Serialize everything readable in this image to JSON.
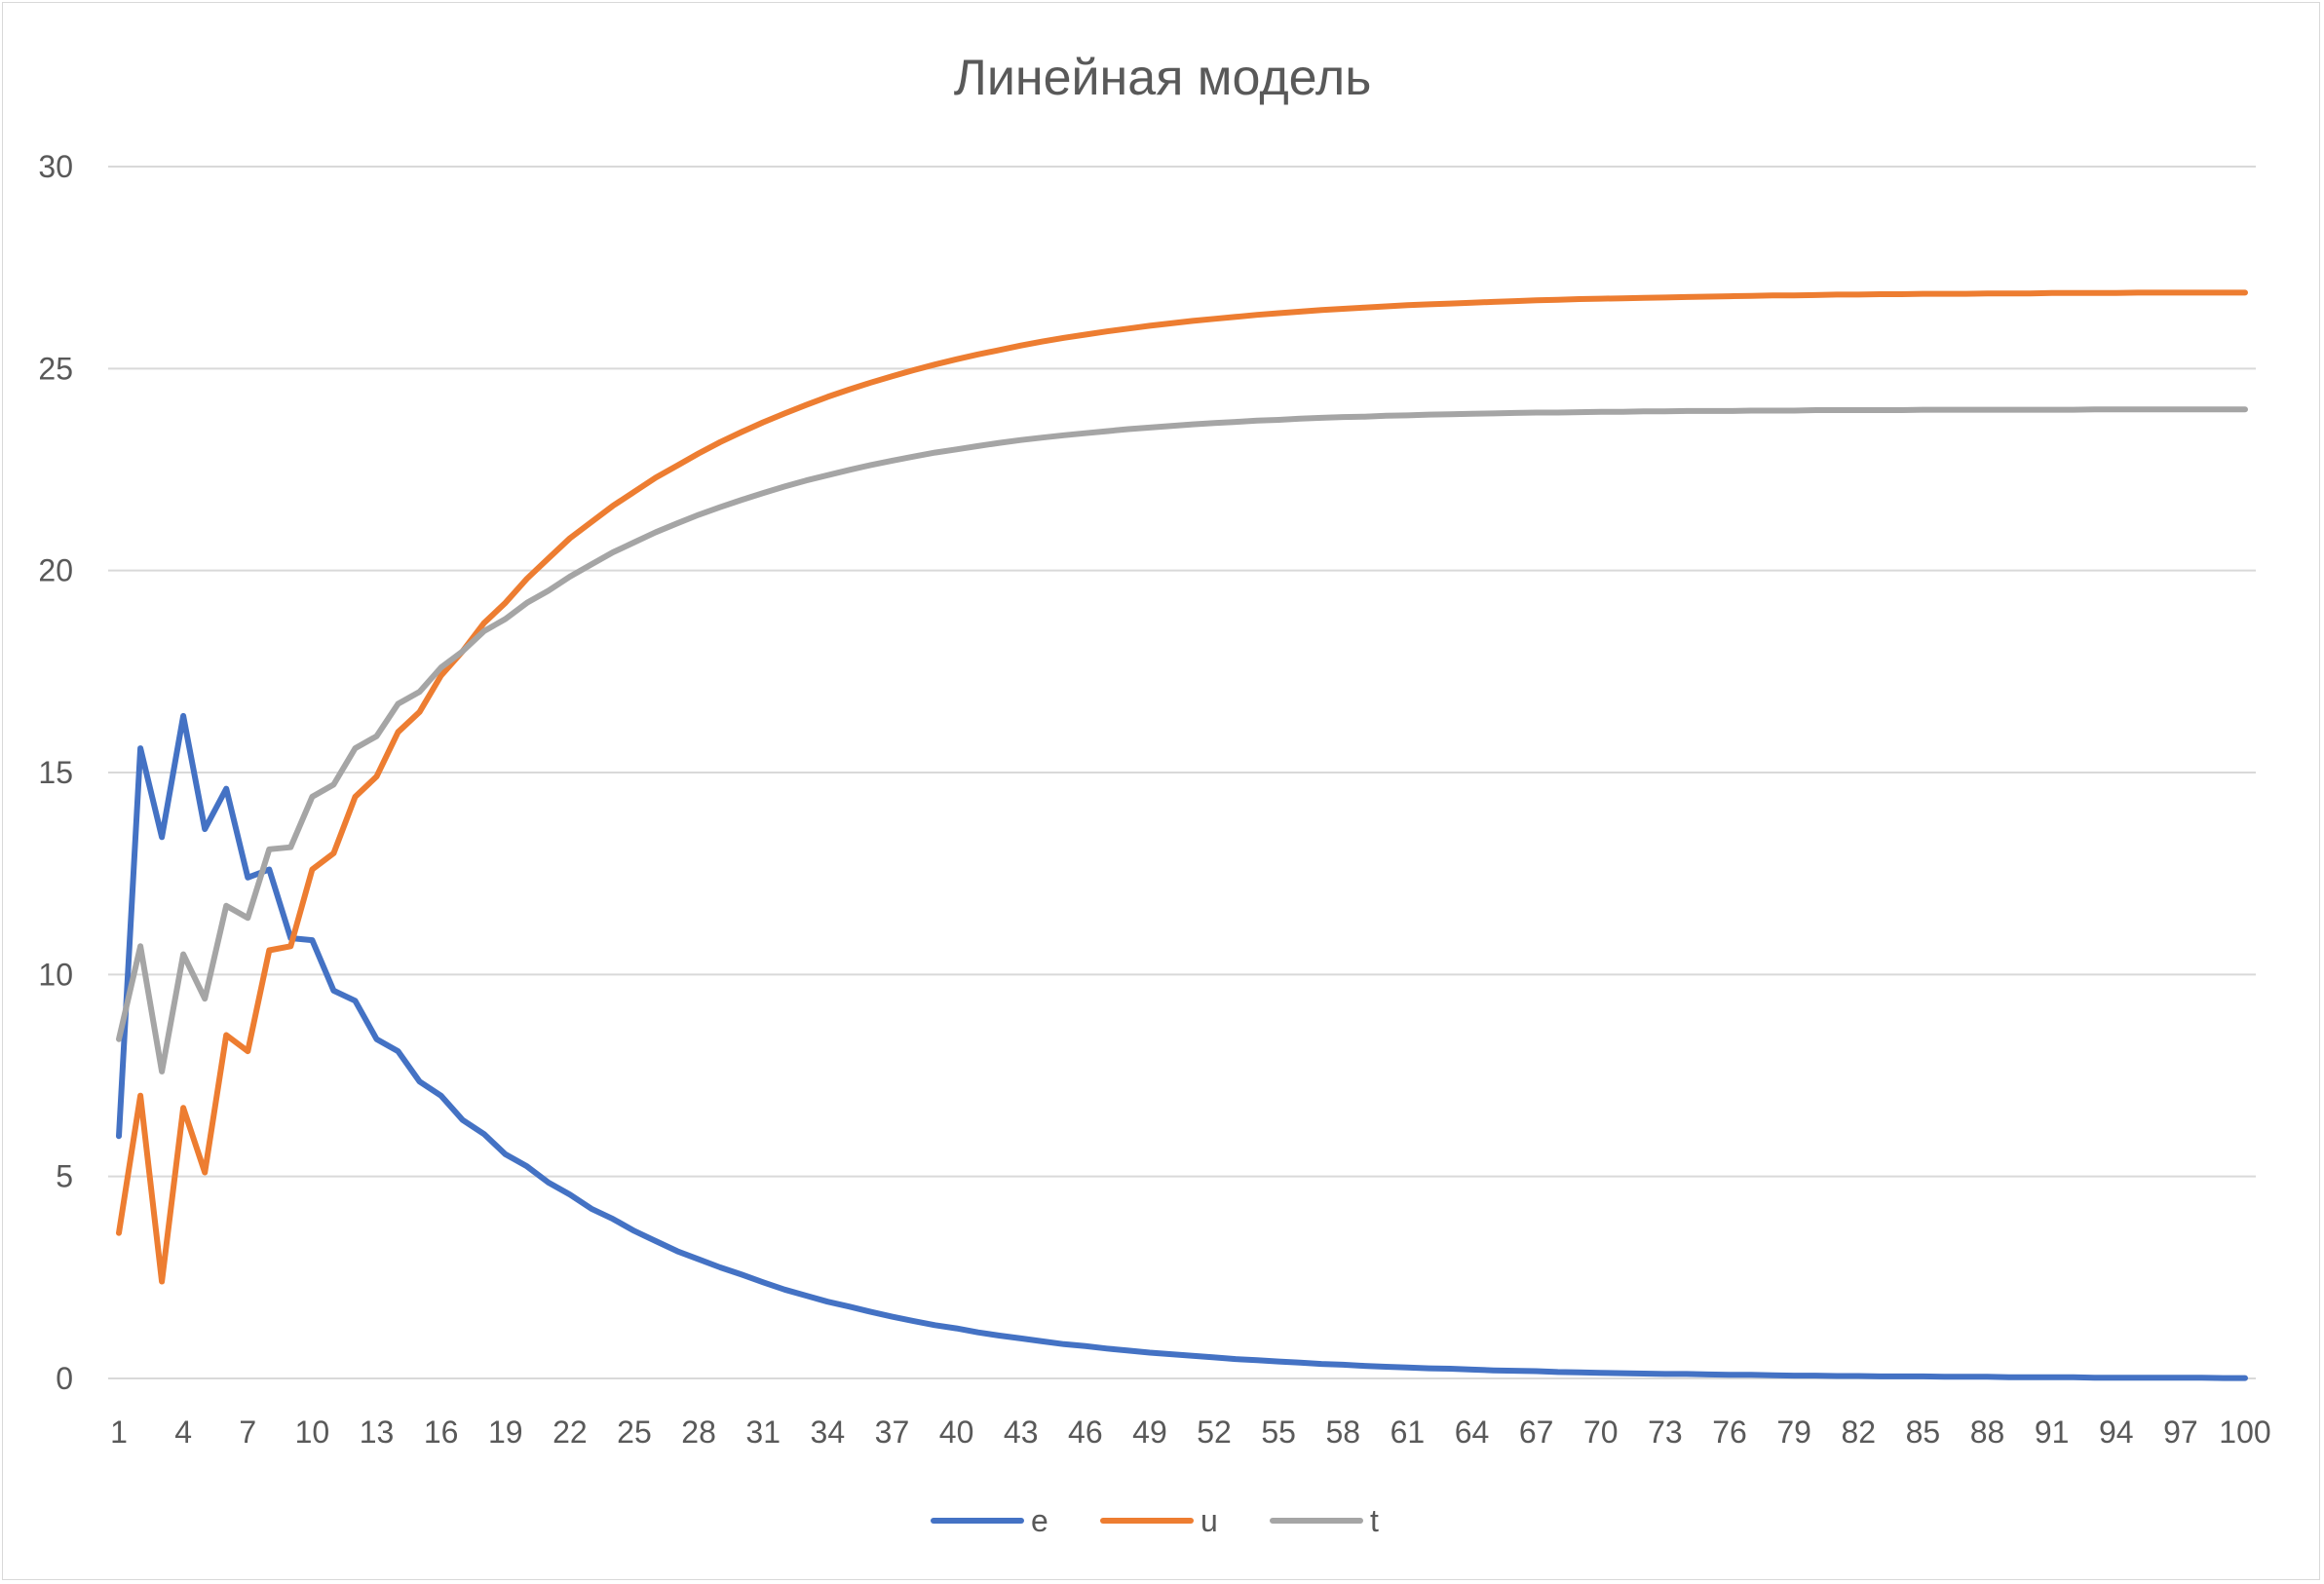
{
  "chart_data": {
    "type": "line",
    "title": "Линейная модель",
    "xlabel": "",
    "ylabel": "",
    "ylim": [
      0,
      30
    ],
    "yticks": [
      0,
      5,
      10,
      15,
      20,
      25,
      30
    ],
    "x": [
      1,
      2,
      3,
      4,
      5,
      6,
      7,
      8,
      9,
      10,
      11,
      12,
      13,
      14,
      15,
      16,
      17,
      18,
      19,
      20,
      21,
      22,
      23,
      24,
      25,
      26,
      27,
      28,
      29,
      30,
      31,
      32,
      33,
      34,
      35,
      36,
      37,
      38,
      39,
      40,
      41,
      42,
      43,
      44,
      45,
      46,
      47,
      48,
      49,
      50,
      51,
      52,
      53,
      54,
      55,
      56,
      57,
      58,
      59,
      60,
      61,
      62,
      63,
      64,
      65,
      66,
      67,
      68,
      69,
      70,
      71,
      72,
      73,
      74,
      75,
      76,
      77,
      78,
      79,
      80,
      81,
      82,
      83,
      84,
      85,
      86,
      87,
      88,
      89,
      90,
      91,
      92,
      93,
      94,
      95,
      96,
      97,
      98,
      99,
      100
    ],
    "xticks": [
      1,
      4,
      7,
      10,
      13,
      16,
      19,
      22,
      25,
      28,
      31,
      34,
      37,
      40,
      43,
      46,
      49,
      52,
      55,
      58,
      61,
      64,
      67,
      70,
      73,
      76,
      79,
      82,
      85,
      88,
      91,
      94,
      97,
      100
    ],
    "grid": true,
    "legend_position": "bottom",
    "series": [
      {
        "name": "e",
        "color": "#4472c4",
        "values": [
          6.0,
          15.6,
          13.4,
          16.4,
          13.6,
          14.6,
          12.4,
          12.6,
          10.9,
          10.85,
          9.6,
          9.35,
          8.4,
          8.1,
          7.35,
          7.0,
          6.4,
          6.05,
          5.55,
          5.25,
          4.85,
          4.55,
          4.2,
          3.95,
          3.65,
          3.4,
          3.15,
          2.95,
          2.75,
          2.57,
          2.38,
          2.2,
          2.05,
          1.9,
          1.78,
          1.65,
          1.53,
          1.42,
          1.32,
          1.24,
          1.14,
          1.06,
          0.99,
          0.92,
          0.85,
          0.8,
          0.74,
          0.69,
          0.64,
          0.6,
          0.56,
          0.52,
          0.48,
          0.45,
          0.42,
          0.39,
          0.36,
          0.34,
          0.31,
          0.29,
          0.27,
          0.25,
          0.24,
          0.22,
          0.2,
          0.19,
          0.18,
          0.16,
          0.15,
          0.14,
          0.13,
          0.12,
          0.11,
          0.11,
          0.1,
          0.09,
          0.09,
          0.08,
          0.07,
          0.07,
          0.06,
          0.06,
          0.05,
          0.05,
          0.05,
          0.04,
          0.04,
          0.04,
          0.03,
          0.03,
          0.03,
          0.03,
          0.02,
          0.02,
          0.02,
          0.02,
          0.02,
          0.02,
          0.01,
          0.01
        ]
      },
      {
        "name": "u",
        "color": "#ed7d31",
        "values": [
          3.6,
          7.0,
          2.4,
          6.7,
          5.1,
          8.5,
          8.1,
          10.6,
          10.7,
          12.6,
          13.0,
          14.4,
          14.9,
          16.0,
          16.5,
          17.4,
          18.0,
          18.7,
          19.2,
          19.8,
          20.3,
          20.8,
          21.2,
          21.6,
          21.95,
          22.3,
          22.6,
          22.9,
          23.18,
          23.43,
          23.67,
          23.89,
          24.1,
          24.3,
          24.48,
          24.65,
          24.81,
          24.96,
          25.1,
          25.23,
          25.35,
          25.46,
          25.57,
          25.67,
          25.76,
          25.84,
          25.92,
          25.99,
          26.06,
          26.12,
          26.18,
          26.23,
          26.28,
          26.33,
          26.37,
          26.41,
          26.45,
          26.48,
          26.51,
          26.54,
          26.57,
          26.59,
          26.61,
          26.63,
          26.65,
          26.67,
          26.69,
          26.7,
          26.72,
          26.73,
          26.74,
          26.75,
          26.76,
          26.77,
          26.78,
          26.79,
          26.8,
          26.81,
          26.81,
          26.82,
          26.83,
          26.83,
          26.84,
          26.84,
          26.85,
          26.85,
          26.85,
          26.86,
          26.86,
          26.86,
          26.87,
          26.87,
          26.87,
          26.87,
          26.88,
          26.88,
          26.88,
          26.88,
          26.88,
          26.88
        ]
      },
      {
        "name": "t",
        "color": "#a5a5a5",
        "values": [
          8.4,
          10.7,
          7.6,
          10.5,
          9.4,
          11.7,
          11.4,
          13.1,
          13.15,
          14.4,
          14.7,
          15.6,
          15.9,
          16.7,
          17.0,
          17.6,
          18.0,
          18.5,
          18.8,
          19.2,
          19.5,
          19.85,
          20.15,
          20.45,
          20.7,
          20.95,
          21.17,
          21.38,
          21.57,
          21.75,
          21.92,
          22.08,
          22.23,
          22.36,
          22.49,
          22.61,
          22.72,
          22.82,
          22.92,
          23.0,
          23.08,
          23.16,
          23.23,
          23.29,
          23.35,
          23.4,
          23.45,
          23.5,
          23.54,
          23.58,
          23.62,
          23.65,
          23.68,
          23.71,
          23.73,
          23.76,
          23.78,
          23.8,
          23.81,
          23.83,
          23.84,
          23.86,
          23.87,
          23.88,
          23.89,
          23.9,
          23.91,
          23.91,
          23.92,
          23.93,
          23.93,
          23.94,
          23.94,
          23.95,
          23.95,
          23.95,
          23.96,
          23.96,
          23.96,
          23.97,
          23.97,
          23.97,
          23.97,
          23.97,
          23.98,
          23.98,
          23.98,
          23.98,
          23.98,
          23.98,
          23.98,
          23.98,
          23.99,
          23.99,
          23.99,
          23.99,
          23.99,
          23.99,
          23.99,
          23.99
        ]
      }
    ]
  }
}
